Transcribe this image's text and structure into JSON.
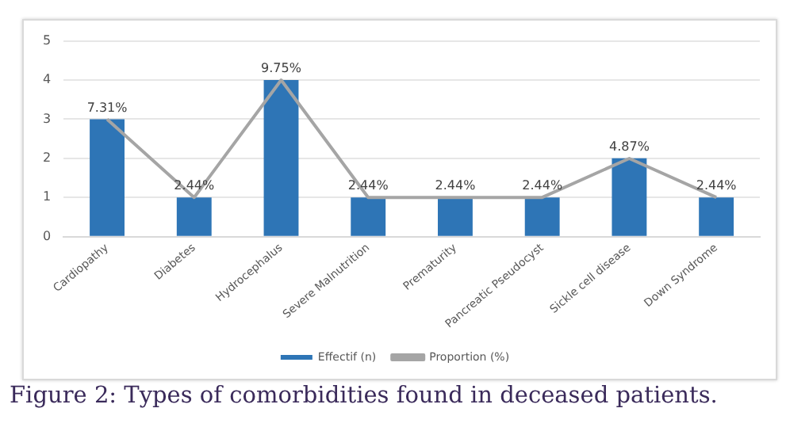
{
  "chart_data": {
    "type": "bar",
    "categories": [
      "Cardiopathy",
      "Diabetes",
      "Hydrocephalus",
      "Severe Malnutrition",
      "Prematurity",
      "Pancreatic Pseudocyst",
      "Sickle cell disease",
      "Down Syndrome"
    ],
    "series": [
      {
        "name": "Effectif (n)",
        "color": "#2e75b6",
        "values": [
          3,
          1,
          4,
          1,
          1,
          1,
          2,
          1
        ]
      },
      {
        "name": "Proportion (%)",
        "type": "line",
        "axis": "y2",
        "color": "#a5a5a5",
        "values": [
          7.31,
          2.44,
          9.75,
          2.44,
          2.44,
          2.44,
          4.87,
          2.44
        ],
        "value_labels": [
          "7.31%",
          "2.44%",
          "9.75%",
          "2.44%",
          "2.44%",
          "2.44%",
          "4.87%",
          "2.44%"
        ]
      }
    ],
    "ylim": [
      0,
      5
    ],
    "y2lim": [
      0,
      12.19
    ],
    "yticks": [
      0,
      1,
      2,
      3,
      4,
      5
    ],
    "grid": "y",
    "legend": "bottom",
    "marker": "none",
    "line_style": "solid",
    "annotations": [
      "Figure 2: Types of comorbidities found in deceased patients."
    ]
  }
}
